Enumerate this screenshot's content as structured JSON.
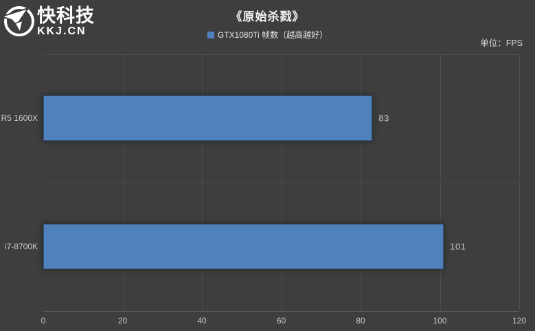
{
  "logo": {
    "brand": "快科技",
    "domain": "KKJ.CN",
    "icon": "paper-plane-circle-icon"
  },
  "unit_label": "单位：FPS",
  "chart_data": {
    "type": "bar",
    "orientation": "horizontal",
    "title": "《原始杀戮》",
    "categories": [
      "R5 1600X",
      "i7-8700K"
    ],
    "series": [
      {
        "name": "GTX1080Ti 帧数（越高越好）",
        "color": "#4F81BD",
        "values": [
          83,
          101
        ]
      }
    ],
    "xlim": [
      0,
      120
    ],
    "xticks": [
      0,
      20,
      40,
      60,
      80,
      100,
      120
    ],
    "grid": "vertical-major",
    "legend_position": "top-center",
    "value_labels": true,
    "unit": "FPS"
  },
  "colors": {
    "background": "#3E3E3E",
    "gridline": "#4C4C4C",
    "axis_line": "#5B5B5B",
    "text": "#C9C9C9",
    "title_text": "#F2F2F2",
    "bar": "#4F81BD"
  }
}
